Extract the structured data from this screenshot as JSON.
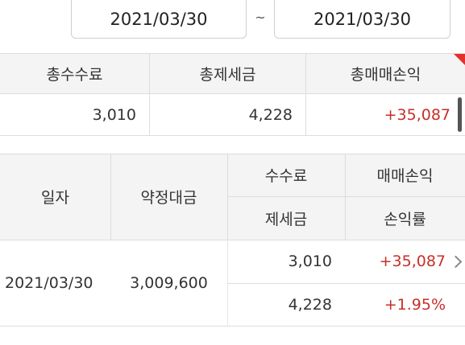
{
  "date_range": {
    "start": "2021/03/30",
    "separator": "~",
    "end": "2021/03/30"
  },
  "summary": {
    "headers": [
      "총수수료",
      "총제세금",
      "총매매손익"
    ],
    "values": [
      "3,010",
      "4,228",
      "+35,087"
    ]
  },
  "table": {
    "headers": {
      "date": "일자",
      "contract": "약정대금",
      "fee": "수수료",
      "tax": "제세금",
      "pnl": "매매손익",
      "rate": "손익률"
    },
    "rows": [
      {
        "date": "2021/03/30",
        "contract": "3,009,600",
        "fee": "3,010",
        "tax": "4,228",
        "pnl": "+35,087",
        "rate": "+1.95%"
      }
    ]
  },
  "colors": {
    "profit": "#c8302a",
    "header_bg": "#f4f4f4",
    "corner_marker": "#e0322c"
  }
}
